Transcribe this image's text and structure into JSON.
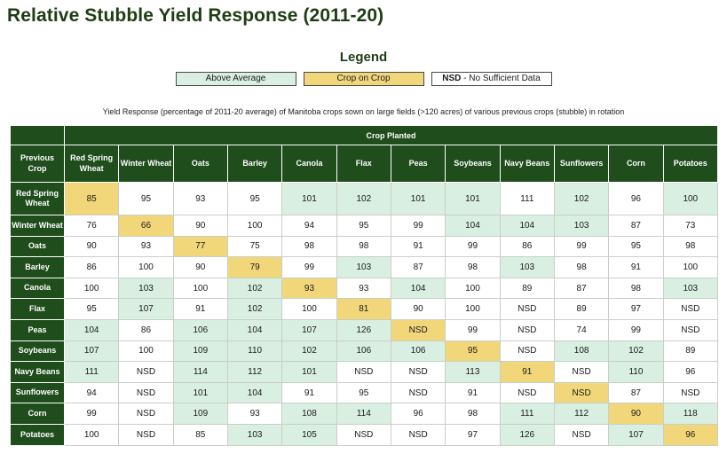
{
  "title": "Relative Stubble Yield Response (2011-20)",
  "legend": {
    "title": "Legend",
    "above": "Above Average",
    "crop_on_crop": "Crop on Crop",
    "nsd_abbr": "NSD",
    "nsd_desc": " - No Sufficient Data"
  },
  "colors": {
    "above_average": "#d9efe1",
    "crop_on_crop": "#f2d77a",
    "header": "#1f4d1c",
    "title": "#1f3d12"
  },
  "subtitle": "Yield Response (percentage of 2011-20 average) of Manitoba crops sown on large fields (>120 acres) of various previous crops (stubble) in rotation",
  "chart_data": {
    "type": "table",
    "title": "Relative Stubble Yield Response (2011-20)",
    "column_group_label": "Crop Planted",
    "row_header_label": "Previous Crop",
    "columns": [
      "Red Spring Wheat",
      "Winter Wheat",
      "Oats",
      "Barley",
      "Canola",
      "Flax",
      "Peas",
      "Soybeans",
      "Navy Beans",
      "Sunflowers",
      "Corn",
      "Potatoes"
    ],
    "rows": [
      {
        "label": "Red Spring Wheat",
        "values": [
          "85",
          "95",
          "93",
          "95",
          "101",
          "102",
          "101",
          "101",
          "111",
          "102",
          "96",
          "100"
        ],
        "status": [
          "crop",
          "",
          "",
          "",
          "above",
          "above",
          "above",
          "above",
          "",
          "above",
          "",
          "above"
        ]
      },
      {
        "label": "Winter Wheat",
        "values": [
          "76",
          "66",
          "90",
          "100",
          "94",
          "95",
          "99",
          "104",
          "104",
          "103",
          "87",
          "73"
        ],
        "status": [
          "",
          "crop",
          "",
          "",
          "",
          "",
          "",
          "above",
          "above",
          "above",
          "",
          ""
        ]
      },
      {
        "label": "Oats",
        "values": [
          "90",
          "93",
          "77",
          "75",
          "98",
          "98",
          "91",
          "99",
          "86",
          "99",
          "95",
          "98"
        ],
        "status": [
          "",
          "",
          "crop",
          "",
          "",
          "",
          "",
          "",
          "",
          "",
          "",
          ""
        ]
      },
      {
        "label": "Barley",
        "values": [
          "86",
          "100",
          "90",
          "79",
          "99",
          "103",
          "87",
          "98",
          "103",
          "98",
          "91",
          "100"
        ],
        "status": [
          "",
          "",
          "",
          "crop",
          "",
          "above",
          "",
          "",
          "above",
          "",
          "",
          ""
        ]
      },
      {
        "label": "Canola",
        "values": [
          "100",
          "103",
          "100",
          "102",
          "93",
          "93",
          "104",
          "100",
          "89",
          "87",
          "98",
          "103"
        ],
        "status": [
          "",
          "above",
          "",
          "above",
          "crop",
          "",
          "above",
          "",
          "",
          "",
          "",
          "above"
        ]
      },
      {
        "label": "Flax",
        "values": [
          "95",
          "107",
          "91",
          "102",
          "100",
          "81",
          "90",
          "100",
          "NSD",
          "89",
          "97",
          "NSD"
        ],
        "status": [
          "",
          "above",
          "",
          "above",
          "",
          "crop",
          "",
          "",
          "",
          "",
          "",
          ""
        ]
      },
      {
        "label": "Peas",
        "values": [
          "104",
          "86",
          "106",
          "104",
          "107",
          "126",
          "NSD",
          "99",
          "NSD",
          "74",
          "99",
          "NSD"
        ],
        "status": [
          "above",
          "",
          "above",
          "above",
          "above",
          "above",
          "crop",
          "",
          "",
          "",
          "",
          ""
        ]
      },
      {
        "label": "Soybeans",
        "values": [
          "107",
          "100",
          "109",
          "110",
          "102",
          "106",
          "106",
          "95",
          "NSD",
          "108",
          "102",
          "89"
        ],
        "status": [
          "above",
          "",
          "above",
          "above",
          "above",
          "above",
          "above",
          "crop",
          "",
          "above",
          "above",
          ""
        ]
      },
      {
        "label": "Navy Beans",
        "values": [
          "111",
          "NSD",
          "114",
          "112",
          "101",
          "NSD",
          "NSD",
          "113",
          "91",
          "NSD",
          "110",
          "96"
        ],
        "status": [
          "above",
          "",
          "above",
          "above",
          "above",
          "",
          "",
          "above",
          "crop",
          "",
          "above",
          ""
        ]
      },
      {
        "label": "Sunflowers",
        "values": [
          "94",
          "NSD",
          "101",
          "104",
          "91",
          "95",
          "NSD",
          "91",
          "NSD",
          "NSD",
          "87",
          "NSD"
        ],
        "status": [
          "",
          "",
          "above",
          "above",
          "",
          "",
          "",
          "",
          "",
          "crop",
          "",
          ""
        ]
      },
      {
        "label": "Corn",
        "values": [
          "99",
          "NSD",
          "109",
          "93",
          "108",
          "114",
          "96",
          "98",
          "111",
          "112",
          "90",
          "118"
        ],
        "status": [
          "",
          "",
          "above",
          "",
          "above",
          "above",
          "",
          "",
          "above",
          "above",
          "crop",
          "above"
        ]
      },
      {
        "label": "Potatoes",
        "values": [
          "100",
          "NSD",
          "85",
          "103",
          "105",
          "NSD",
          "NSD",
          "97",
          "126",
          "NSD",
          "107",
          "96"
        ],
        "status": [
          "",
          "",
          "",
          "above",
          "above",
          "",
          "",
          "",
          "above",
          "",
          "above",
          "crop"
        ]
      }
    ]
  }
}
